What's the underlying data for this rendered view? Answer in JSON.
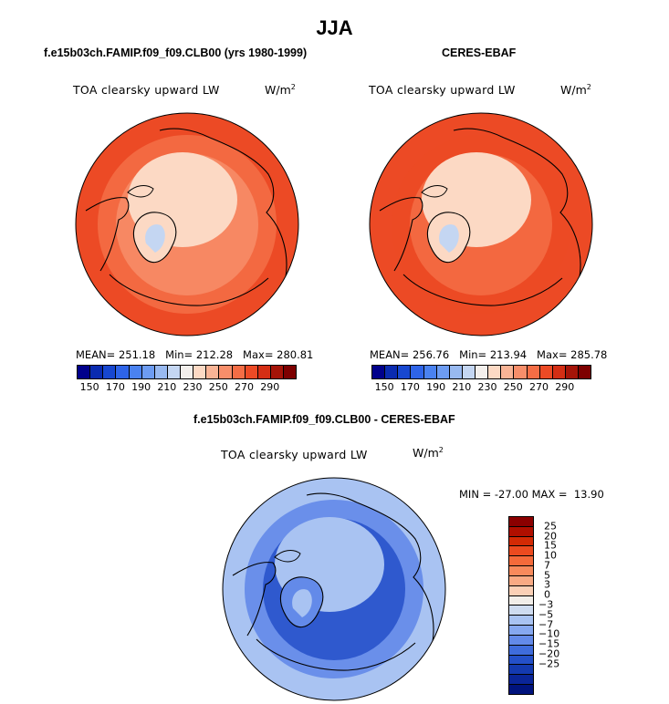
{
  "title": "JJA",
  "panels": [
    {
      "subtitle": "f.e15b03ch.FAMIP.f09_f09.CLB00 (yrs 1980-1999)",
      "label": "TOA clearsky upward LW",
      "unit_base": "W/m",
      "unit_exp": "2",
      "stats": "MEAN= 251.18   Min= 212.28   Max= 280.81"
    },
    {
      "subtitle": "CERES-EBAF",
      "label": "TOA clearsky upward LW",
      "unit_base": "W/m",
      "unit_exp": "2",
      "stats": "MEAN= 256.76   Min= 213.94   Max= 285.78"
    },
    {
      "subtitle": "f.e15b03ch.FAMIP.f09_f09.CLB00 - CERES-EBAF",
      "label": "TOA clearsky upward LW",
      "unit_base": "W/m",
      "unit_exp": "2",
      "stats": "MIN = -27.00 MAX =  13.90"
    }
  ],
  "chart_data": [
    {
      "type": "heatmap",
      "title": "JJA",
      "subtitle": "f.e15b03ch.FAMIP.f09_f09.CLB00 (yrs 1980-1999)",
      "projection": "polar stereographic, north pole",
      "variable": "TOA clearsky upward LW",
      "units": "W/m2",
      "mean": 251.18,
      "min": 212.28,
      "max": 280.81,
      "colorbar_levels": [
        150,
        160,
        170,
        180,
        190,
        200,
        210,
        220,
        230,
        240,
        250,
        260,
        270,
        280,
        290
      ],
      "colorbar_tick_labels": [
        "150",
        "170",
        "190",
        "210",
        "230",
        "250",
        "270",
        "290"
      ],
      "colors": [
        "#00008b",
        "#0a2bb0",
        "#1747d0",
        "#2e64e8",
        "#4a82f0",
        "#6d9cf2",
        "#98b9f0",
        "#c4d6f2",
        "#f3efec",
        "#fcd9c4",
        "#f9b496",
        "#f78e6a",
        "#f46d45",
        "#ec4a25",
        "#d42e14",
        "#a51408",
        "#7d0000"
      ]
    },
    {
      "type": "heatmap",
      "subtitle": "CERES-EBAF",
      "projection": "polar stereographic, north pole",
      "variable": "TOA clearsky upward LW",
      "units": "W/m2",
      "mean": 256.76,
      "min": 213.94,
      "max": 285.78,
      "colorbar_levels": [
        150,
        160,
        170,
        180,
        190,
        200,
        210,
        220,
        230,
        240,
        250,
        260,
        270,
        280,
        290
      ],
      "colorbar_tick_labels": [
        "150",
        "170",
        "190",
        "210",
        "230",
        "250",
        "270",
        "290"
      ]
    },
    {
      "type": "heatmap",
      "subtitle": "f.e15b03ch.FAMIP.f09_f09.CLB00 - CERES-EBAF",
      "projection": "polar stereographic, north pole",
      "variable": "TOA clearsky upward LW",
      "units": "W/m2",
      "min": -27.0,
      "max": 13.9,
      "colorbar_levels": [
        -25,
        -20,
        -15,
        -10,
        -7,
        -5,
        -3,
        0,
        3,
        5,
        7,
        10,
        15,
        20,
        25
      ],
      "colorbar_tick_labels": [
        "25",
        "20",
        "15",
        "10",
        "7",
        "5",
        "3",
        "0",
        "−3",
        "−5",
        "−7",
        "−10",
        "−15",
        "−20",
        "−25"
      ],
      "diff_colors_top_to_bottom": [
        "#8b0000",
        "#b00f00",
        "#d32a05",
        "#ec4a1f",
        "#f56a3a",
        "#f88a5c",
        "#f9aa84",
        "#fbd0b6",
        "#f2eee9",
        "#cfdcf0",
        "#a9c3f2",
        "#86a8f0",
        "#638ae9",
        "#3f6cdc",
        "#2450c9",
        "#143ab0",
        "#0a2598",
        "#00137d"
      ]
    }
  ]
}
